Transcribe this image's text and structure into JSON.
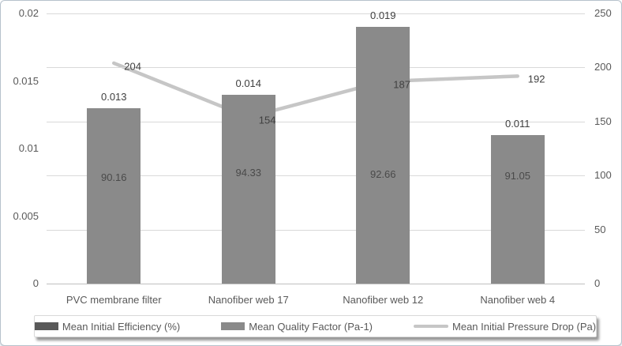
{
  "chart_data": {
    "type": "bar+line combo (dual axis)",
    "categories": [
      "PVC membrane filter",
      "Nanofiber web  17",
      "Nanofiber web 12",
      "Nanofiber web 4"
    ],
    "series": [
      {
        "name": "Mean Initial Efficiency (%)",
        "render": "bar-labels-only",
        "axis": "right",
        "values": [
          90.16,
          94.33,
          92.66,
          91.05
        ],
        "labels": [
          "90.16",
          "94.33",
          "92.66",
          "91.05"
        ],
        "color": "#595959"
      },
      {
        "name": "Mean Quality Factor (Pa-1)",
        "render": "bar",
        "axis": "left",
        "values": [
          0.013,
          0.014,
          0.019,
          0.011
        ],
        "labels": [
          "0.013",
          "0.014",
          "0.019",
          "0.011"
        ],
        "color": "#8a8a8a"
      },
      {
        "name": "Mean Initial Pressure Drop (Pa)",
        "render": "line",
        "axis": "right",
        "values": [
          204,
          154,
          187,
          192
        ],
        "labels": [
          "204",
          "154",
          "187",
          "192"
        ],
        "color": "#c6c6c6"
      }
    ],
    "left_axis": {
      "min": 0,
      "max": 0.02,
      "tick_labels": [
        "0.02",
        "0.015",
        "0.01",
        "0.005",
        "0"
      ]
    },
    "right_axis": {
      "min": 0,
      "max": 250,
      "tick_labels": [
        "250",
        "200",
        "150",
        "100",
        "50",
        "0"
      ]
    },
    "grid": "horizontal gridlines at right-axis steps of 50",
    "legend_position": "bottom",
    "title": "",
    "xlabel": "",
    "ylabel": ""
  },
  "colors": {
    "bar": "#8a8a8a",
    "efficiency_swatch": "#595959",
    "line": "#c6c6c6",
    "gridline": "#d9d9d9",
    "axis_line": "#bfbfbf",
    "axis_text": "#595959",
    "data_label_text": "#404040"
  }
}
